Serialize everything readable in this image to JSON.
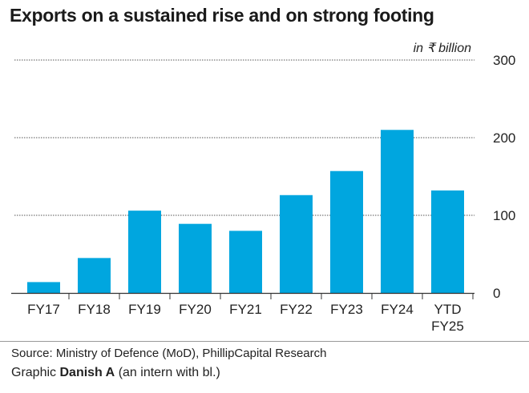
{
  "chart_data": {
    "type": "bar",
    "title": "Exports on a sustained rise and on strong footing",
    "unit_label": "in ₹ billion",
    "categories": [
      "FY17",
      "FY18",
      "FY19",
      "FY20",
      "FY21",
      "FY22",
      "FY23",
      "FY24",
      "YTD FY25"
    ],
    "values": [
      14,
      45,
      106,
      89,
      80,
      126,
      157,
      210,
      132
    ],
    "ylim": [
      0,
      300
    ],
    "yticks": [
      0,
      100,
      200,
      300
    ],
    "y_axis_side": "right",
    "grid": true,
    "bar_color": "#00a6df"
  },
  "footer": {
    "source": "Source: Ministry of Defence (MoD), PhillipCapital Research",
    "graphic_prefix": "Graphic",
    "author": "Danish A",
    "author_note": "(an intern with bl.)"
  }
}
